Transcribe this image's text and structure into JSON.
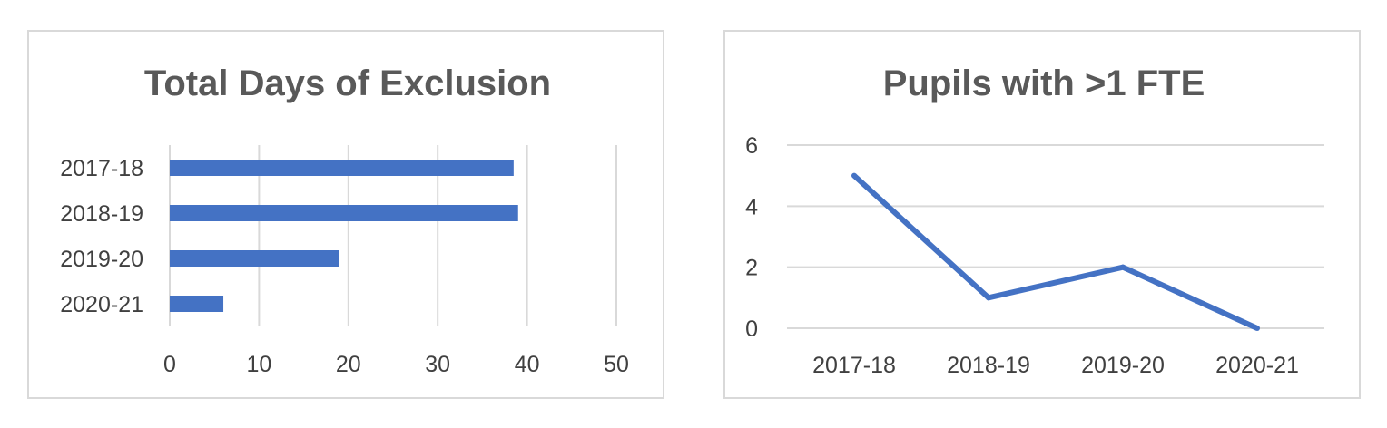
{
  "chart_data": [
    {
      "type": "bar",
      "orientation": "horizontal",
      "title": "Total Days of Exclusion",
      "categories": [
        "2017-18",
        "2018-19",
        "2019-20",
        "2020-21"
      ],
      "values": [
        38.5,
        39,
        19,
        6
      ],
      "xlim": [
        0,
        50
      ],
      "xticks": [
        "0",
        "10",
        "20",
        "30",
        "40",
        "50"
      ],
      "grid": true,
      "legend": "none",
      "color": "#4472c4"
    },
    {
      "type": "line",
      "title": "Pupils with >1 FTE",
      "categories": [
        "2017-18",
        "2018-19",
        "2019-20",
        "2020-21"
      ],
      "values": [
        5,
        1,
        2,
        0
      ],
      "ylim": [
        0,
        6
      ],
      "yticks": [
        "0",
        "2",
        "4",
        "6"
      ],
      "grid": true,
      "legend": "none",
      "color": "#4472c4"
    }
  ]
}
